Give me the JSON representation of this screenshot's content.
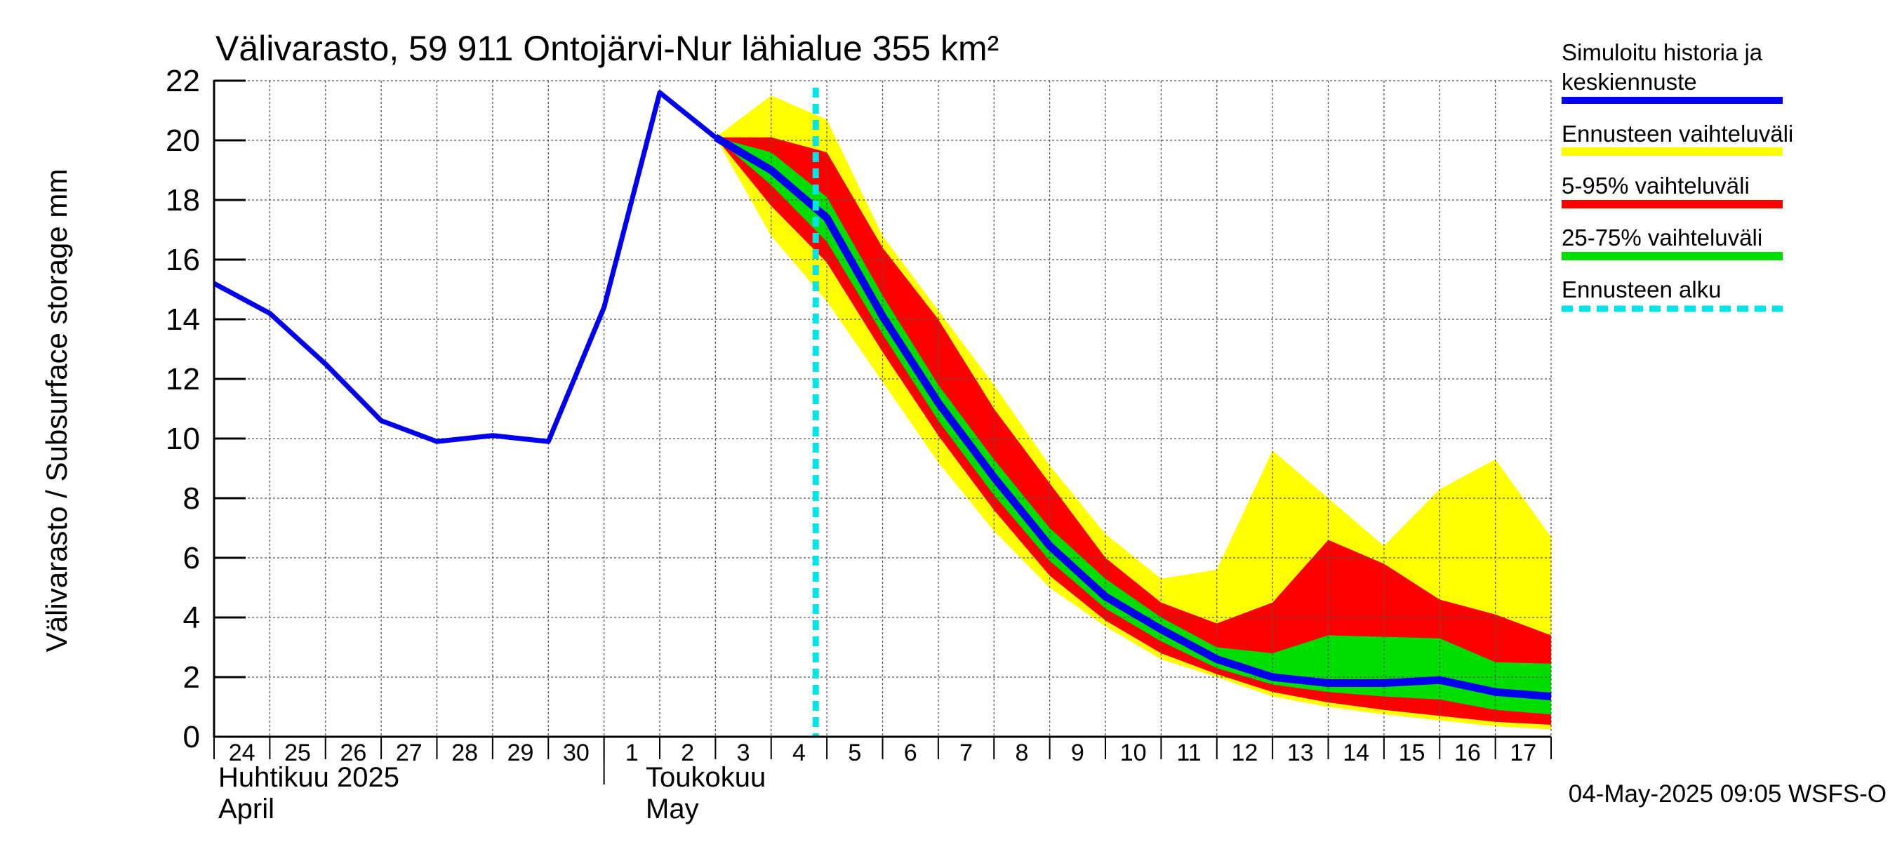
{
  "chart_data": {
    "type": "area",
    "title": "Välivarasto, 59 911 Ontojärvi-Nur lähialue 355 km²",
    "ylabel": "Välivarasto / Subsurface storage  mm",
    "ylim": [
      0,
      22
    ],
    "y_ticks": [
      "0",
      "2",
      "4",
      "6",
      "8",
      "10",
      "12",
      "14",
      "16",
      "18",
      "20",
      "22"
    ],
    "x_range": [
      "2025-04-24",
      "2025-05-18"
    ],
    "x_tick_labels": [
      "24",
      "25",
      "26",
      "27",
      "28",
      "29",
      "30",
      "1",
      "2",
      "3",
      "4",
      "5",
      "6",
      "7",
      "8",
      "9",
      "10",
      "11",
      "12",
      "13",
      "14",
      "15",
      "16",
      "17"
    ],
    "month_labels": [
      {
        "fi": "Huhtikuu  2025",
        "en": "April"
      },
      {
        "fi": "Toukokuu",
        "en": "May"
      }
    ],
    "grid": true,
    "legend_position": "right",
    "legend": [
      {
        "label": "Simuloitu historia ja keskiennuste",
        "color": "#0000ee"
      },
      {
        "label": "Ennusteen vaihteluväli",
        "color": "#ffff00"
      },
      {
        "label": "5-95% vaihteluväli",
        "color": "#ff0000"
      },
      {
        "label": "25-75% vaihteluväli",
        "color": "#00dd00"
      },
      {
        "label": "Ennusteen alku",
        "color": "#00e5e5"
      }
    ],
    "forecast_start": "2025-05-04",
    "history": {
      "x": [
        "2025-04-24",
        "2025-04-25",
        "2025-04-26",
        "2025-04-27",
        "2025-04-28",
        "2025-04-29",
        "2025-04-30",
        "2025-05-01",
        "2025-05-02",
        "2025-05-03"
      ],
      "y": [
        15.2,
        14.2,
        12.5,
        10.6,
        9.9,
        10.1,
        9.9,
        14.4,
        21.6,
        20.1
      ]
    },
    "forecast": {
      "x": [
        "2025-05-03",
        "2025-05-04",
        "2025-05-05",
        "2025-05-06",
        "2025-05-07",
        "2025-05-08",
        "2025-05-09",
        "2025-05-10",
        "2025-05-11",
        "2025-05-12",
        "2025-05-13",
        "2025-05-14",
        "2025-05-15",
        "2025-05-16",
        "2025-05-17",
        "2025-05-18"
      ],
      "median": [
        20.1,
        19.0,
        17.4,
        14.1,
        11.2,
        8.7,
        6.4,
        4.7,
        3.6,
        2.6,
        2.0,
        1.8,
        1.8,
        1.9,
        1.5,
        1.35
      ],
      "min": [
        20.1,
        16.8,
        14.6,
        11.9,
        9.2,
        6.9,
        5.0,
        3.7,
        2.6,
        2.0,
        1.35,
        1.0,
        0.75,
        0.55,
        0.35,
        0.25
      ],
      "max": [
        20.1,
        21.5,
        20.7,
        16.8,
        14.3,
        11.8,
        9.1,
        6.8,
        5.3,
        5.6,
        9.6,
        8.0,
        6.4,
        8.3,
        9.3,
        6.7
      ],
      "p5": [
        20.1,
        17.8,
        15.9,
        12.9,
        10.1,
        7.6,
        5.4,
        3.9,
        2.8,
        2.1,
        1.5,
        1.15,
        0.9,
        0.7,
        0.5,
        0.4
      ],
      "p95": [
        20.1,
        20.1,
        19.6,
        16.4,
        14.0,
        11.0,
        8.5,
        6.0,
        4.5,
        3.8,
        4.5,
        6.6,
        5.8,
        4.6,
        4.1,
        3.4
      ],
      "p25": [
        20.1,
        18.5,
        16.6,
        13.5,
        10.6,
        8.1,
        5.9,
        4.3,
        3.2,
        2.3,
        1.75,
        1.5,
        1.35,
        1.25,
        0.9,
        0.75
      ],
      "p75": [
        20.1,
        19.6,
        18.1,
        14.8,
        11.8,
        9.3,
        7.0,
        5.3,
        4.0,
        3.0,
        2.8,
        3.4,
        3.35,
        3.3,
        2.5,
        2.45
      ]
    }
  },
  "footer_text": "04-May-2025 09:05 WSFS-O"
}
